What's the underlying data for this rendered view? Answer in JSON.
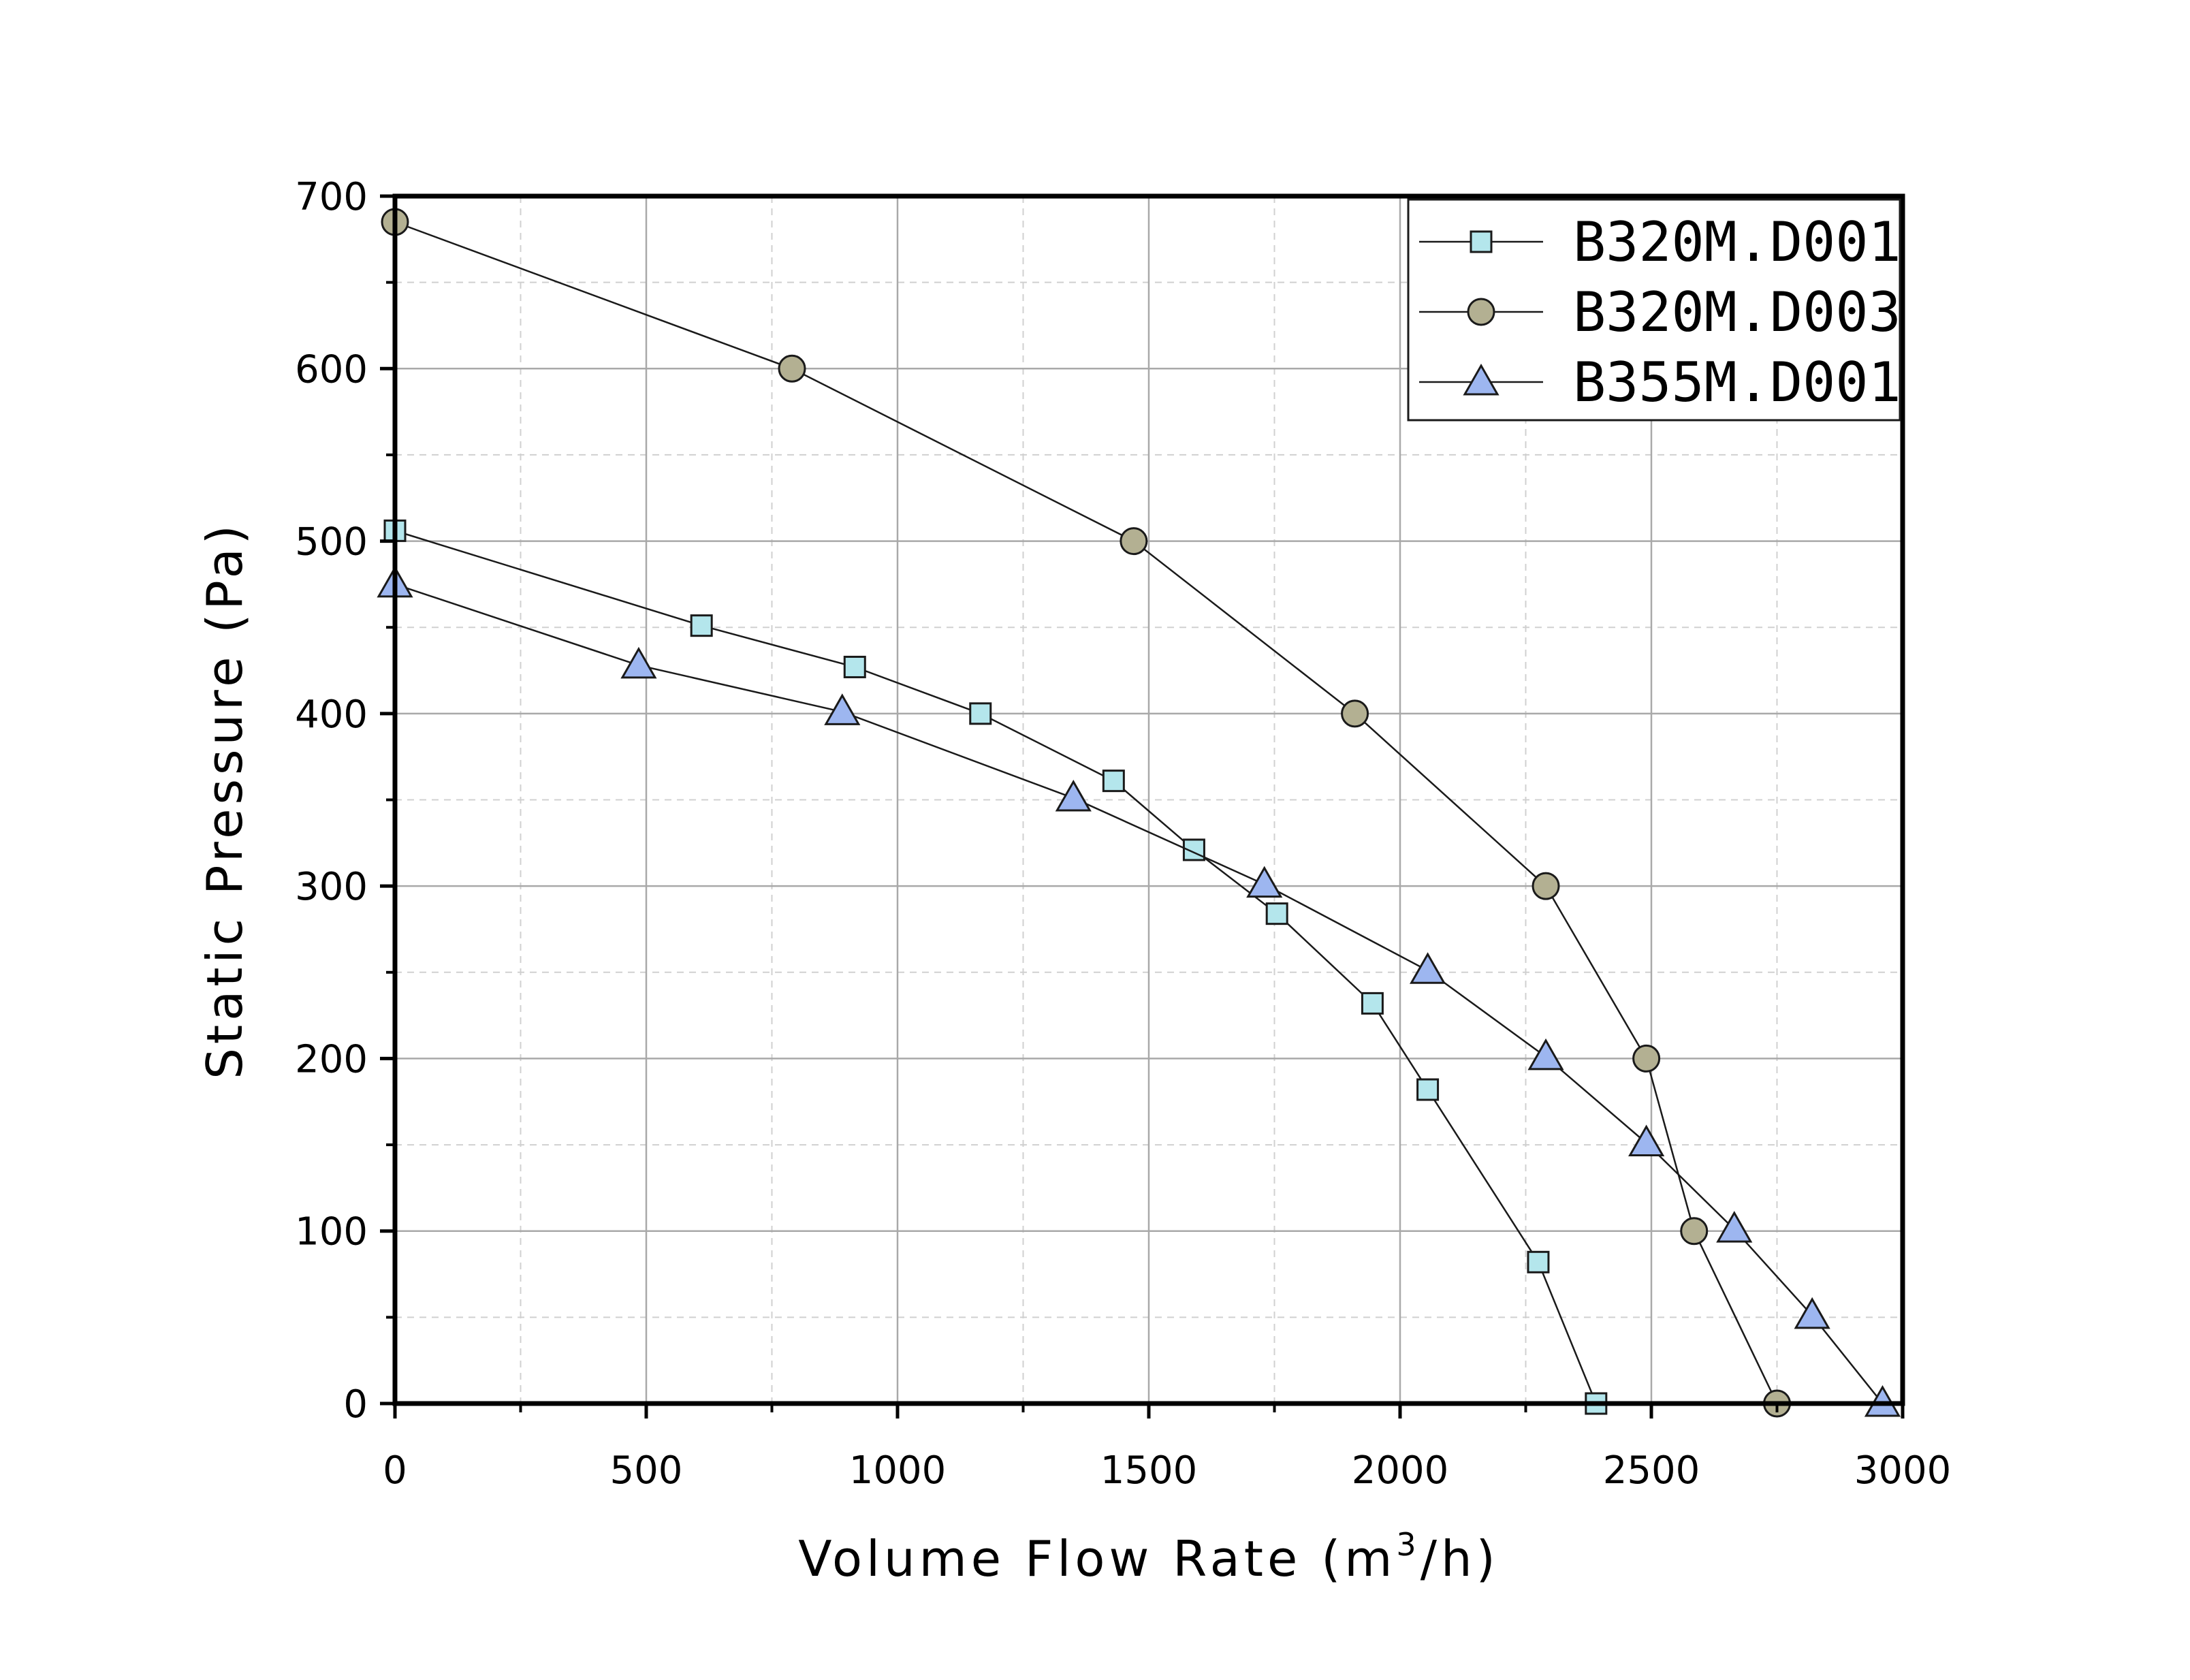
{
  "chart_data": {
    "type": "line",
    "title": "",
    "xlabel": "Volume Flow Rate (m",
    "xlabel_sup": "3",
    "xlabel_end": "/h)",
    "ylabel": "Static Pressure (Pa)",
    "xlim": [
      0,
      3000
    ],
    "ylim": [
      0,
      700
    ],
    "x_major_ticks": [
      0,
      500,
      1000,
      1500,
      2000,
      2500,
      3000
    ],
    "y_major_ticks": [
      0,
      100,
      200,
      300,
      400,
      500,
      600,
      700
    ],
    "grid": true,
    "legend_position": "top-right",
    "series": [
      {
        "name": "B320M.D001",
        "marker": "square",
        "color": "#b4e6ec",
        "x": [
          0,
          610,
          915,
          1165,
          1430,
          1590,
          1755,
          1945,
          2055,
          2275,
          2390
        ],
        "y": [
          506,
          451,
          427,
          400,
          361,
          321,
          284,
          232,
          182,
          82,
          0
        ]
      },
      {
        "name": "B320M.D003",
        "marker": "circle",
        "color": "#b3b092",
        "x": [
          0,
          790,
          1470,
          1910,
          2290,
          2490,
          2585,
          2750
        ],
        "y": [
          685,
          600,
          500,
          400,
          300,
          200,
          100,
          0
        ]
      },
      {
        "name": "B355M.D001",
        "marker": "triangle",
        "color": "#9db6f0",
        "x": [
          0,
          485,
          890,
          1350,
          1730,
          2055,
          2290,
          2490,
          2665,
          2820,
          2960
        ],
        "y": [
          475,
          428,
          401,
          351,
          301,
          251,
          201,
          151,
          101,
          51,
          0
        ]
      }
    ]
  }
}
